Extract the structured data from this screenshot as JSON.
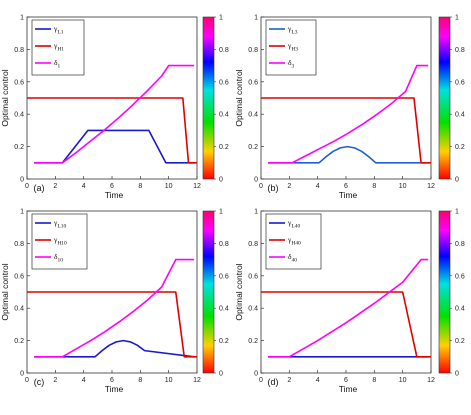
{
  "chart_data": [
    {
      "type": "line",
      "panel_label": "(a)",
      "xlabel": "Time",
      "ylabel": "Optimal control",
      "xlim": [
        0,
        12
      ],
      "ylim": [
        0,
        1
      ],
      "xticks": [
        "0",
        "2",
        "4",
        "6",
        "8",
        "10",
        "12"
      ],
      "yticks": [
        "0",
        "0.2",
        "0.4",
        "0.6",
        "0.8",
        "1"
      ],
      "legend_position": "top-left",
      "series": [
        {
          "name": "γL1",
          "name_base": "γ",
          "name_sub": "L1",
          "color": "#1a1acc",
          "x": [
            0.5,
            2.5,
            4.3,
            8.6,
            9.8,
            11.8
          ],
          "y": [
            0.1,
            0.1,
            0.3,
            0.3,
            0.1,
            0.1
          ]
        },
        {
          "name": "γH1",
          "name_base": "γ",
          "name_sub": "H1",
          "color": "#e00000",
          "x": [
            0,
            11,
            11.4,
            12
          ],
          "y": [
            0.5,
            0.5,
            0.1,
            0.1
          ]
        },
        {
          "name": "δ1",
          "name_base": "δ",
          "name_sub": "1",
          "color": "#ff00ff",
          "x": [
            0.5,
            2.5,
            3.5,
            4.5,
            5.5,
            6.5,
            7.5,
            8.5,
            9.5,
            10,
            11.8
          ],
          "y": [
            0.1,
            0.1,
            0.165,
            0.235,
            0.305,
            0.38,
            0.46,
            0.545,
            0.635,
            0.7,
            0.7
          ]
        }
      ],
      "colorbar": {
        "ticks": [
          "0",
          "0.2",
          "0.4",
          "0.6",
          "0.8",
          "1"
        ]
      }
    },
    {
      "type": "line",
      "panel_label": "(b)",
      "xlabel": "Time",
      "ylabel": "Optimal control",
      "xlim": [
        0,
        12
      ],
      "ylim": [
        0,
        1
      ],
      "xticks": [
        "0",
        "2",
        "4",
        "6",
        "8",
        "10",
        "12"
      ],
      "yticks": [
        "0",
        "0.2",
        "0.4",
        "0.6",
        "0.8",
        "1"
      ],
      "legend_position": "top-left",
      "series": [
        {
          "name": "γL3",
          "name_base": "γ",
          "name_sub": "L3",
          "color": "#1f5fd0",
          "x": [
            0.5,
            4.1,
            4.6,
            5.1,
            5.6,
            6.1,
            6.6,
            7.1,
            7.6,
            8.1,
            11.8
          ],
          "y": [
            0.1,
            0.1,
            0.138,
            0.171,
            0.192,
            0.2,
            0.192,
            0.171,
            0.138,
            0.1,
            0.1
          ]
        },
        {
          "name": "γH3",
          "name_base": "γ",
          "name_sub": "H3",
          "color": "#e00000",
          "x": [
            0,
            10.8,
            11.3,
            12
          ],
          "y": [
            0.5,
            0.5,
            0.1,
            0.1
          ]
        },
        {
          "name": "δ3",
          "name_base": "δ",
          "name_sub": "3",
          "color": "#ff00ff",
          "x": [
            0.5,
            2.2,
            3.2,
            4.2,
            5.2,
            6.2,
            7.2,
            8.2,
            9.2,
            10.2,
            11,
            11.8
          ],
          "y": [
            0.1,
            0.1,
            0.145,
            0.19,
            0.235,
            0.285,
            0.34,
            0.4,
            0.465,
            0.54,
            0.7,
            0.7
          ]
        }
      ],
      "colorbar": {
        "ticks": [
          "0",
          "0.2",
          "0.4",
          "0.6",
          "0.8",
          "1"
        ]
      }
    },
    {
      "type": "line",
      "panel_label": "(c)",
      "xlabel": "Time",
      "ylabel": "Optimal control",
      "xlim": [
        0,
        12
      ],
      "ylim": [
        0,
        1
      ],
      "xticks": [
        "0",
        "2",
        "4",
        "6",
        "8",
        "10",
        "12"
      ],
      "yticks": [
        "0",
        "0.2",
        "0.4",
        "0.6",
        "0.8",
        "1"
      ],
      "legend_position": "top-left",
      "series": [
        {
          "name": "γL10",
          "name_base": "γ",
          "name_sub": "L10",
          "color": "#1a1acc",
          "x": [
            0.5,
            4.8,
            5.3,
            5.8,
            6.3,
            6.8,
            7.3,
            7.8,
            8.3,
            11.8
          ],
          "y": [
            0.1,
            0.1,
            0.138,
            0.171,
            0.192,
            0.2,
            0.192,
            0.171,
            0.138,
            0.1
          ]
        },
        {
          "name": "γH10",
          "name_base": "γ",
          "name_sub": "H10",
          "color": "#e00000",
          "x": [
            0,
            10.5,
            11.1,
            12
          ],
          "y": [
            0.5,
            0.5,
            0.1,
            0.1
          ]
        },
        {
          "name": "δ10",
          "name_base": "δ",
          "name_sub": "10",
          "color": "#ff00ff",
          "x": [
            0.5,
            2.5,
            3.5,
            4.5,
            5.5,
            6.5,
            7.5,
            8.5,
            9.5,
            10.5,
            11.8
          ],
          "y": [
            0.1,
            0.1,
            0.15,
            0.2,
            0.255,
            0.315,
            0.38,
            0.45,
            0.53,
            0.7,
            0.7
          ]
        }
      ],
      "colorbar": {
        "ticks": [
          "0",
          "0.2",
          "0.4",
          "0.6",
          "0.8",
          "1"
        ]
      }
    },
    {
      "type": "line",
      "panel_label": "(d)",
      "xlabel": "Time",
      "ylabel": "Optimal control",
      "xlim": [
        0,
        12
      ],
      "ylim": [
        0,
        1
      ],
      "xticks": [
        "0",
        "2",
        "4",
        "6",
        "8",
        "10",
        "12"
      ],
      "yticks": [
        "0",
        "0.2",
        "0.4",
        "0.6",
        "0.8",
        "1"
      ],
      "legend_position": "top-left",
      "series": [
        {
          "name": "γL40",
          "name_base": "γ",
          "name_sub": "L40",
          "color": "#1a1acc",
          "x": [
            0.5,
            11.8
          ],
          "y": [
            0.1,
            0.1
          ]
        },
        {
          "name": "γH40",
          "name_base": "γ",
          "name_sub": "H40",
          "color": "#e00000",
          "x": [
            0,
            10,
            11,
            12
          ],
          "y": [
            0.5,
            0.5,
            0.1,
            0.1
          ]
        },
        {
          "name": "δ40",
          "name_base": "δ",
          "name_sub": "40",
          "color": "#ff00ff",
          "x": [
            0.5,
            2,
            3,
            4,
            5,
            6,
            7,
            8,
            9,
            10,
            11.3,
            11.8
          ],
          "y": [
            0.1,
            0.1,
            0.15,
            0.2,
            0.255,
            0.31,
            0.37,
            0.43,
            0.495,
            0.56,
            0.7,
            0.7
          ]
        }
      ],
      "colorbar": {
        "ticks": [
          "0",
          "0.2",
          "0.4",
          "0.6",
          "0.8",
          "1"
        ]
      }
    }
  ]
}
